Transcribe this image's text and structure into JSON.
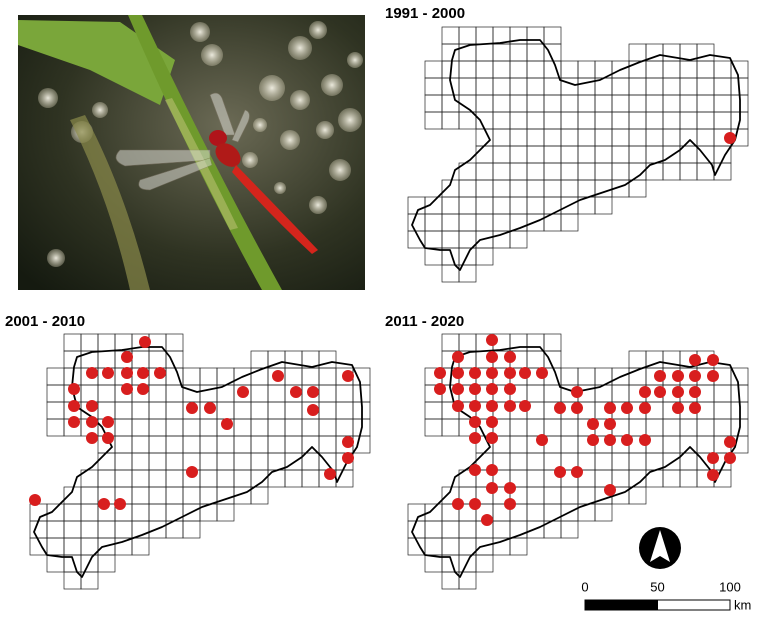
{
  "panels": [
    {
      "title": "1991 - 2000"
    },
    {
      "title": "2001 - 2010"
    },
    {
      "title": "2011 - 2020"
    }
  ],
  "scale_bar": {
    "ticks": [
      0,
      50,
      100
    ],
    "unit": "km"
  }
}
